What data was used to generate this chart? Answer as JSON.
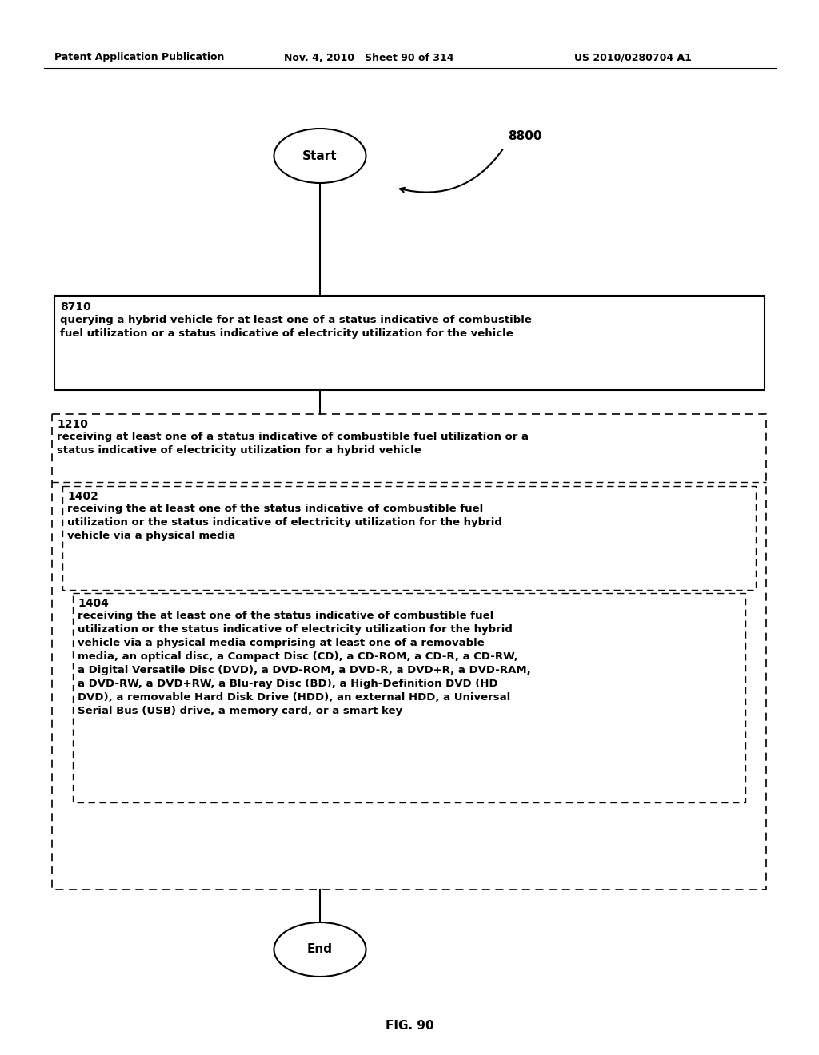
{
  "bg_color": "#ffffff",
  "header_left": "Patent Application Publication",
  "header_mid": "Nov. 4, 2010   Sheet 90 of 314",
  "header_right": "US 2010/0280704 A1",
  "fig_label": "FIG. 90",
  "flow_label": "8800",
  "start_label": "Start",
  "end_label": "End",
  "box8710_id": "8710",
  "box8710_text": "querying a hybrid vehicle for at least one of a status indicative of combustible\nfuel utilization or a status indicative of electricity utilization for the vehicle",
  "box1210_id": "1210",
  "box1210_text": "receiving at least one of a status indicative of combustible fuel utilization or a\nstatus indicative of electricity utilization for a hybrid vehicle",
  "box1402_id": "1402",
  "box1402_text": "receiving the at least one of the status indicative of combustible fuel\nutilization or the status indicative of electricity utilization for the hybrid\nvehicle via a physical media",
  "box1404_id": "1404",
  "box1404_text": "receiving the at least one of the status indicative of combustible fuel\nutilization or the status indicative of electricity utilization for the hybrid\nvehicle via a physical media comprising at least one of a removable\nmedia, an optical disc, a Compact Disc (CD), a CD-ROM, a CD-R, a CD-RW,\na Digital Versatile Disc (DVD), a DVD-ROM, a DVD-R, a DVD+R, a DVD-RAM,\na DVD-RW, a DVD+RW, a Blu-ray Disc (BD), a High-Definition DVD (HD\nDVD), a removable Hard Disk Drive (HDD), an external HDD, a Universal\nSerial Bus (USB) drive, a memory card, or a smart key"
}
